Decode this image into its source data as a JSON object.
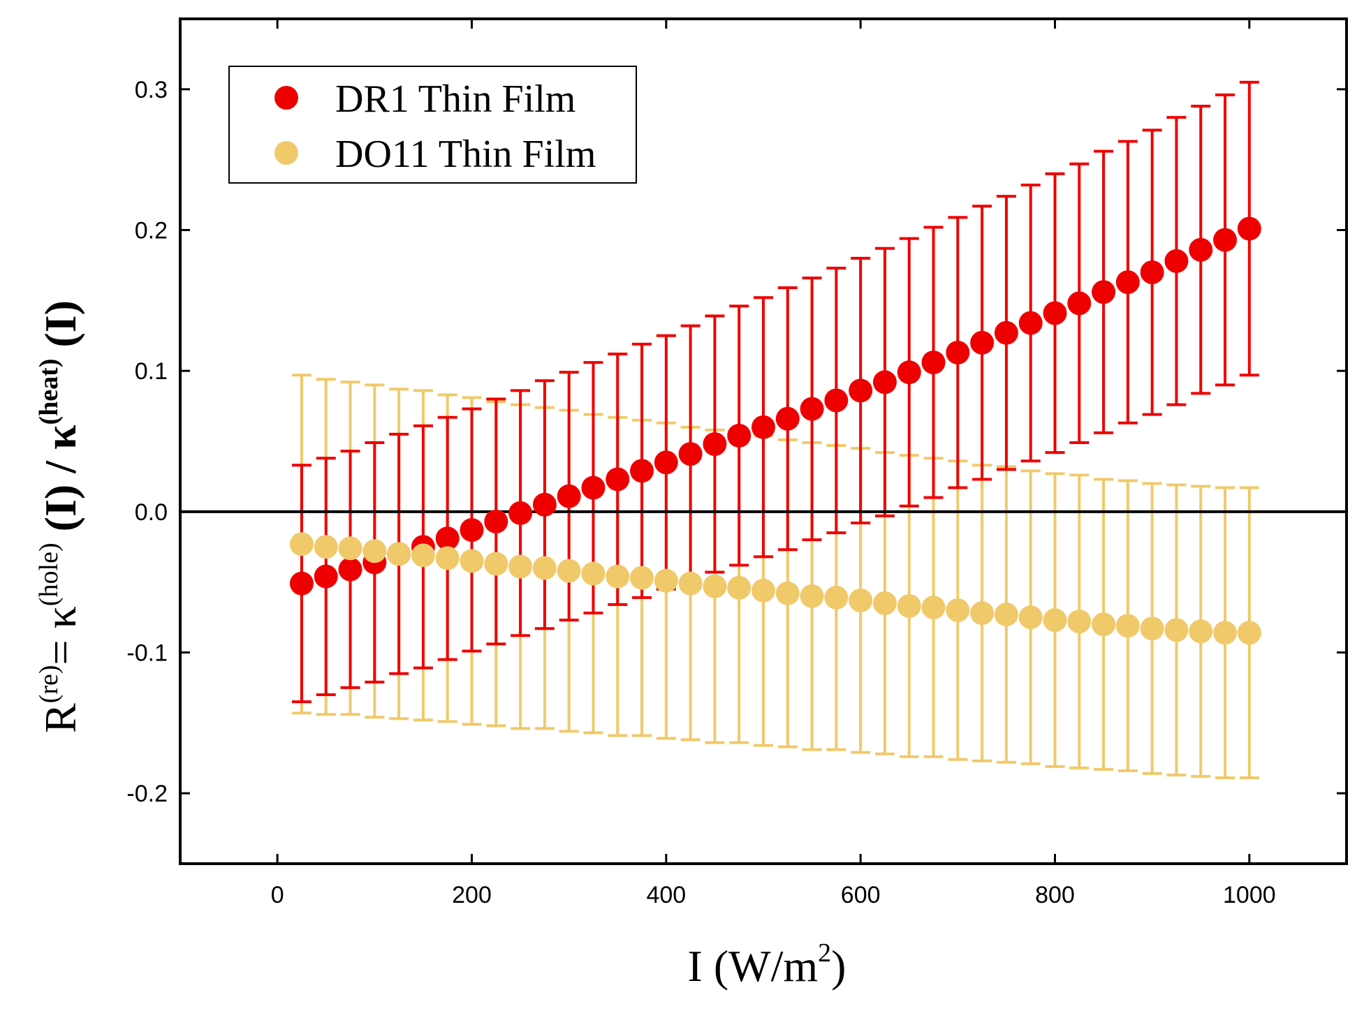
{
  "chart_data": {
    "type": "scatter",
    "title": "",
    "xlabel": {
      "main": "I (W/m",
      "sup": "2",
      "close": ")"
    },
    "ylabel": {
      "p1": "R",
      "s1": "(re)",
      "p2": "= κ",
      "s2": "(hole)",
      "p3": " (I) / κ",
      "s3": "(heat)",
      "p4": " (I)"
    },
    "xlim": [
      -100,
      1100
    ],
    "ylim": [
      -0.25,
      0.35
    ],
    "x_ticks": [
      0,
      200,
      400,
      600,
      800,
      1000
    ],
    "x_tick_labels": [
      "0",
      "200",
      "400",
      "600",
      "800",
      "1000"
    ],
    "y_ticks": [
      -0.2,
      -0.1,
      0.0,
      0.1,
      0.2,
      0.3
    ],
    "y_tick_labels": [
      "-0.2",
      "-0.1",
      "0.0",
      "0.1",
      "0.2",
      "0.3"
    ],
    "reference_line_y": 0.0,
    "legend_position": "top-left",
    "x": [
      25,
      50,
      75,
      100,
      125,
      150,
      175,
      200,
      225,
      250,
      275,
      300,
      325,
      350,
      375,
      400,
      425,
      450,
      475,
      500,
      525,
      550,
      575,
      600,
      625,
      650,
      675,
      700,
      725,
      750,
      775,
      800,
      825,
      850,
      875,
      900,
      925,
      950,
      975,
      1000
    ],
    "series": [
      {
        "name": "DR1 Thin Film",
        "color": "#ee0000",
        "values": [
          -0.051,
          -0.046,
          -0.041,
          -0.036,
          -0.03,
          -0.025,
          -0.019,
          -0.013,
          -0.007,
          -0.001,
          0.005,
          0.011,
          0.017,
          0.023,
          0.029,
          0.035,
          0.041,
          0.048,
          0.054,
          0.06,
          0.066,
          0.073,
          0.079,
          0.086,
          0.092,
          0.099,
          0.106,
          0.113,
          0.12,
          0.127,
          0.134,
          0.141,
          0.148,
          0.156,
          0.163,
          0.17,
          0.178,
          0.186,
          0.193,
          0.201
        ],
        "error": [
          0.084,
          0.084,
          0.084,
          0.085,
          0.085,
          0.086,
          0.086,
          0.086,
          0.087,
          0.087,
          0.088,
          0.088,
          0.089,
          0.089,
          0.09,
          0.09,
          0.091,
          0.091,
          0.092,
          0.092,
          0.093,
          0.093,
          0.094,
          0.094,
          0.095,
          0.095,
          0.096,
          0.096,
          0.097,
          0.097,
          0.098,
          0.099,
          0.099,
          0.1,
          0.1,
          0.101,
          0.102,
          0.102,
          0.103,
          0.104
        ]
      },
      {
        "name": "DO11 Thin Film",
        "color": "#f0c96a",
        "values": [
          -0.023,
          -0.025,
          -0.026,
          -0.028,
          -0.03,
          -0.031,
          -0.033,
          -0.035,
          -0.037,
          -0.039,
          -0.04,
          -0.042,
          -0.044,
          -0.046,
          -0.047,
          -0.049,
          -0.051,
          -0.053,
          -0.054,
          -0.056,
          -0.058,
          -0.06,
          -0.061,
          -0.063,
          -0.065,
          -0.067,
          -0.068,
          -0.07,
          -0.072,
          -0.073,
          -0.075,
          -0.077,
          -0.078,
          -0.08,
          -0.081,
          -0.083,
          -0.084,
          -0.085,
          -0.086,
          -0.086
        ],
        "error": [
          0.12,
          0.119,
          0.118,
          0.118,
          0.117,
          0.117,
          0.116,
          0.116,
          0.115,
          0.115,
          0.114,
          0.114,
          0.113,
          0.113,
          0.112,
          0.112,
          0.111,
          0.111,
          0.11,
          0.11,
          0.109,
          0.109,
          0.108,
          0.108,
          0.107,
          0.107,
          0.106,
          0.106,
          0.105,
          0.105,
          0.104,
          0.104,
          0.104,
          0.103,
          0.103,
          0.103,
          0.103,
          0.103,
          0.103,
          0.103
        ]
      }
    ]
  }
}
